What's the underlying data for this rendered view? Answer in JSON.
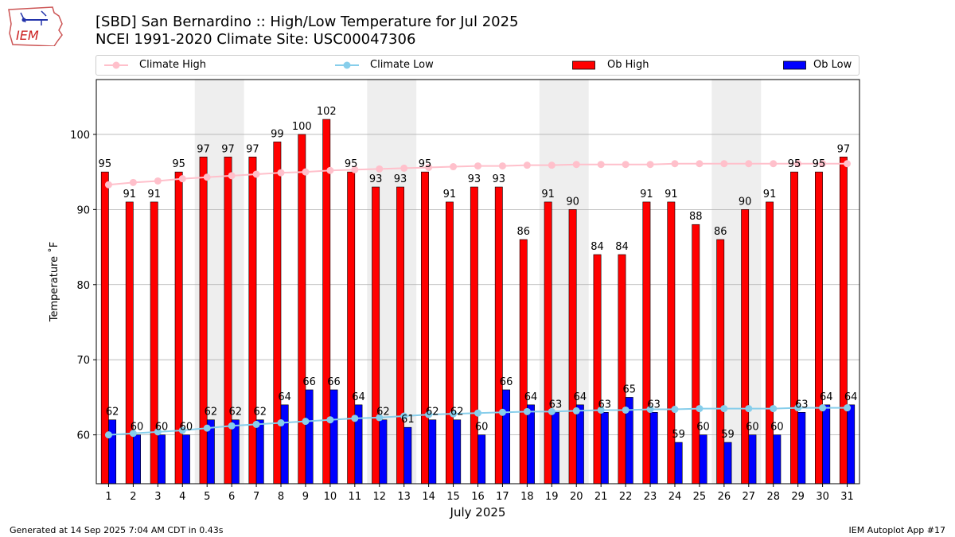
{
  "title_line1": "[SBD] San Bernardino :: High/Low Temperature for Jul 2025",
  "title_line2": "NCEI 1991-2020 Climate Site: USC00047306",
  "logo_text": "IEM",
  "footer_left": "Generated at 14 Sep 2025 7:04 AM CDT in 0.43s",
  "footer_right": "IEM Autoplot App #17",
  "colors": {
    "ob_high": "#ff0000",
    "ob_low": "#0000ff",
    "climate_high": "#ffc0cb",
    "climate_low": "#87ceeb",
    "weekend_shade": "#eeeeee"
  },
  "chart_data": {
    "type": "bar",
    "xlabel": "July 2025",
    "ylabel": "Temperature ˚F",
    "ylim": [
      53.5,
      107.3
    ],
    "xlim": [
      0.5,
      31.5
    ],
    "yticks": [
      60,
      70,
      80,
      90,
      100
    ],
    "grid": "horizontal",
    "legend_position": "top",
    "categories": [
      "1",
      "2",
      "3",
      "4",
      "5",
      "6",
      "7",
      "8",
      "9",
      "10",
      "11",
      "12",
      "13",
      "14",
      "15",
      "16",
      "17",
      "18",
      "19",
      "20",
      "21",
      "22",
      "23",
      "24",
      "25",
      "26",
      "27",
      "28",
      "29",
      "30",
      "31"
    ],
    "shaded_days": [
      [
        5,
        6
      ],
      [
        12,
        13
      ],
      [
        19,
        20
      ],
      [
        26,
        27
      ]
    ],
    "series": [
      {
        "name": "Climate High",
        "kind": "line",
        "values": [
          93.3,
          93.6,
          93.8,
          94.1,
          94.3,
          94.5,
          94.7,
          94.9,
          95.0,
          95.2,
          95.3,
          95.4,
          95.5,
          95.6,
          95.7,
          95.8,
          95.8,
          95.9,
          95.9,
          96.0,
          96.0,
          96.0,
          96.0,
          96.1,
          96.1,
          96.1,
          96.1,
          96.1,
          96.1,
          96.1,
          96.1
        ]
      },
      {
        "name": "Climate Low",
        "kind": "line",
        "values": [
          60.0,
          60.2,
          60.4,
          60.6,
          60.9,
          61.2,
          61.4,
          61.6,
          61.8,
          62.0,
          62.2,
          62.3,
          62.5,
          62.7,
          62.8,
          62.9,
          63.0,
          63.1,
          63.1,
          63.2,
          63.3,
          63.3,
          63.4,
          63.4,
          63.5,
          63.5,
          63.5,
          63.5,
          63.6,
          63.6,
          63.6
        ]
      },
      {
        "name": "Ob High",
        "kind": "bar",
        "values": [
          95,
          91,
          91,
          95,
          97,
          97,
          97,
          99,
          100,
          102,
          95,
          93,
          93,
          95,
          91,
          93,
          93,
          86,
          91,
          90,
          84,
          84,
          91,
          91,
          88,
          86,
          90,
          91,
          95,
          95,
          97
        ]
      },
      {
        "name": "Ob Low",
        "kind": "bar",
        "values": [
          62,
          60,
          60,
          60,
          62,
          62,
          62,
          64,
          66,
          66,
          64,
          62,
          61,
          62,
          62,
          60,
          66,
          64,
          63,
          64,
          63,
          65,
          63,
          59,
          60,
          59,
          60,
          60,
          63,
          64,
          64
        ]
      }
    ]
  }
}
